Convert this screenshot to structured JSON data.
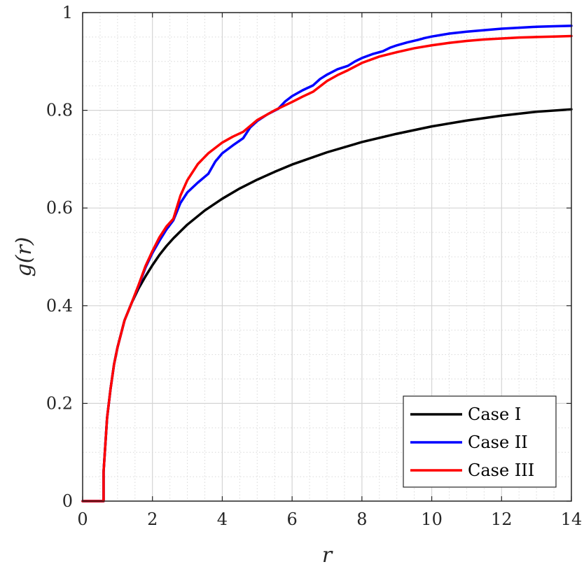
{
  "chart_data": {
    "type": "line",
    "title": "",
    "xlabel": "r",
    "ylabel": "g(r)",
    "xlim": [
      0,
      14
    ],
    "ylim": [
      0,
      1
    ],
    "xticks": [
      0,
      2,
      4,
      6,
      8,
      10,
      12,
      14
    ],
    "xtick_labels": [
      "0",
      "2",
      "4",
      "6",
      "8",
      "10",
      "12",
      "14"
    ],
    "yticks": [
      0,
      0.2,
      0.4,
      0.6,
      0.8,
      1
    ],
    "ytick_labels": [
      "0",
      "0.2",
      "0.4",
      "0.6",
      "0.8",
      "1"
    ],
    "grid": true,
    "minor_grid": true,
    "legend_position": "bottom-right",
    "series": [
      {
        "name": "Case I",
        "color": "#000000",
        "x": [
          0,
          0.6,
          0.6,
          0.7,
          0.8,
          0.9,
          1.0,
          1.2,
          1.4,
          1.6,
          1.8,
          2.0,
          2.2,
          2.4,
          2.6,
          3.0,
          3.5,
          4.0,
          4.5,
          5.0,
          5.5,
          6.0,
          7.0,
          8.0,
          9.0,
          10.0,
          11.0,
          12.0,
          13.0,
          14.0
        ],
        "y": [
          0,
          0,
          0.06,
          0.17,
          0.23,
          0.28,
          0.315,
          0.37,
          0.405,
          0.435,
          0.46,
          0.483,
          0.504,
          0.522,
          0.538,
          0.566,
          0.595,
          0.619,
          0.64,
          0.658,
          0.674,
          0.689,
          0.714,
          0.735,
          0.752,
          0.767,
          0.779,
          0.789,
          0.797,
          0.802
        ]
      },
      {
        "name": "Case II",
        "color": "#0000ff",
        "x": [
          0,
          0.6,
          0.6,
          0.7,
          0.8,
          0.9,
          1.0,
          1.2,
          1.4,
          1.6,
          1.8,
          2.0,
          2.2,
          2.4,
          2.6,
          2.8,
          3.0,
          3.3,
          3.6,
          3.8,
          4.0,
          4.3,
          4.6,
          4.8,
          5.0,
          5.3,
          5.6,
          5.8,
          6.0,
          6.3,
          6.6,
          6.8,
          7.0,
          7.3,
          7.6,
          7.8,
          8.0,
          8.3,
          8.6,
          8.8,
          9.0,
          9.3,
          9.6,
          9.8,
          10.0,
          10.5,
          11.0,
          11.5,
          12.0,
          12.5,
          13.0,
          13.5,
          14.0
        ],
        "y": [
          0,
          0,
          0.06,
          0.17,
          0.23,
          0.28,
          0.315,
          0.37,
          0.405,
          0.44,
          0.478,
          0.508,
          0.533,
          0.556,
          0.575,
          0.61,
          0.632,
          0.652,
          0.67,
          0.695,
          0.712,
          0.728,
          0.743,
          0.765,
          0.778,
          0.792,
          0.803,
          0.818,
          0.829,
          0.841,
          0.851,
          0.864,
          0.873,
          0.884,
          0.891,
          0.9,
          0.907,
          0.915,
          0.921,
          0.928,
          0.933,
          0.939,
          0.944,
          0.948,
          0.951,
          0.957,
          0.961,
          0.964,
          0.967,
          0.969,
          0.971,
          0.972,
          0.973
        ]
      },
      {
        "name": "Case III",
        "color": "#ff0000",
        "x": [
          0,
          0.6,
          0.6,
          0.7,
          0.8,
          0.9,
          1.0,
          1.2,
          1.4,
          1.6,
          1.8,
          2.0,
          2.2,
          2.4,
          2.6,
          2.8,
          3.0,
          3.3,
          3.6,
          4.0,
          4.3,
          4.6,
          5.0,
          5.5,
          6.0,
          6.3,
          6.6,
          7.0,
          7.3,
          7.6,
          8.0,
          8.5,
          9.0,
          9.5,
          10.0,
          10.5,
          11.0,
          11.5,
          12.0,
          12.5,
          13.0,
          13.5,
          14.0
        ],
        "y": [
          0,
          0,
          0.06,
          0.17,
          0.23,
          0.28,
          0.315,
          0.37,
          0.405,
          0.442,
          0.481,
          0.512,
          0.54,
          0.562,
          0.578,
          0.625,
          0.657,
          0.69,
          0.712,
          0.734,
          0.746,
          0.756,
          0.78,
          0.8,
          0.817,
          0.828,
          0.838,
          0.86,
          0.872,
          0.882,
          0.897,
          0.91,
          0.919,
          0.927,
          0.933,
          0.938,
          0.942,
          0.945,
          0.947,
          0.949,
          0.95,
          0.951,
          0.952
        ]
      }
    ]
  }
}
